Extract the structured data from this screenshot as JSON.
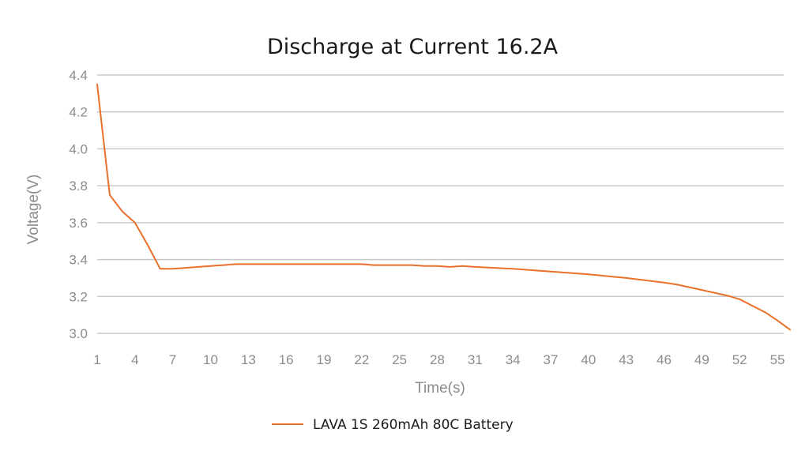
{
  "chart_data": {
    "type": "line",
    "title": "Discharge at Current 16.2A",
    "xlabel": "Time(s)",
    "ylabel": "Voltage(V)",
    "ylim": [
      3.0,
      4.4
    ],
    "yticks": [
      "3.0",
      "3.2",
      "3.4",
      "3.6",
      "3.8",
      "4.0",
      "4.2",
      "4.4"
    ],
    "xticks": [
      "1",
      "4",
      "7",
      "10",
      "13",
      "16",
      "19",
      "22",
      "25",
      "28",
      "31",
      "34",
      "37",
      "40",
      "43",
      "46",
      "49",
      "52",
      "55"
    ],
    "grid": true,
    "legend_position": "bottom",
    "series": [
      {
        "name": "LAVA 1S 260mAh 80C Battery",
        "color": "#e8702a",
        "x": [
          1,
          2,
          3,
          4,
          5,
          6,
          7,
          8,
          9,
          10,
          11,
          12,
          13,
          14,
          16,
          19,
          22,
          23,
          25,
          26,
          27,
          28,
          29,
          30,
          31,
          34,
          37,
          40,
          43,
          46,
          47,
          48,
          49,
          50,
          51,
          52,
          53,
          54,
          55,
          56
        ],
        "values": [
          4.35,
          3.75,
          3.66,
          3.6,
          3.48,
          3.35,
          3.35,
          3.355,
          3.36,
          3.365,
          3.37,
          3.375,
          3.375,
          3.375,
          3.375,
          3.375,
          3.375,
          3.37,
          3.37,
          3.37,
          3.365,
          3.365,
          3.36,
          3.365,
          3.36,
          3.35,
          3.335,
          3.32,
          3.3,
          3.275,
          3.265,
          3.25,
          3.235,
          3.22,
          3.205,
          3.185,
          3.15,
          3.115,
          3.07,
          3.02
        ]
      }
    ]
  }
}
